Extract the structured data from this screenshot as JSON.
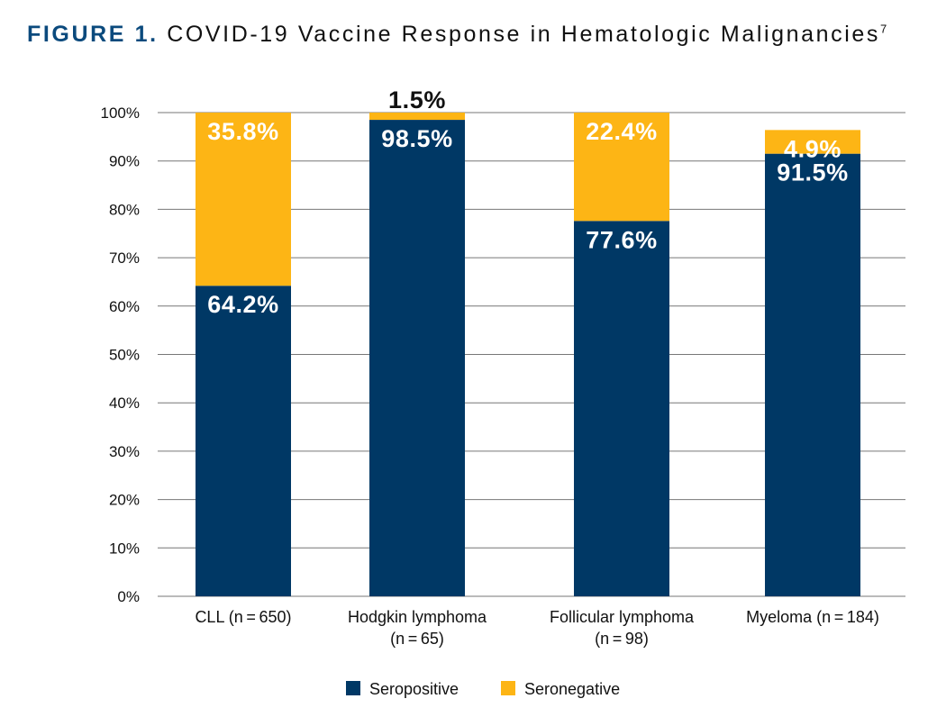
{
  "title": {
    "prefix": "FIGURE 1.",
    "text": "COVID-19 Vaccine Response in Hematologic Malignancies",
    "superscript": "7"
  },
  "chart_data": {
    "type": "bar",
    "stacked": true,
    "categories": [
      [
        "CLL (n = 650)"
      ],
      [
        "Hodgkin lymphoma",
        "(n = 65)"
      ],
      [
        "Follicular lymphoma",
        "(n = 98)"
      ],
      [
        "Myeloma (n = 184)"
      ]
    ],
    "series": [
      {
        "name": "Seropositive",
        "color": "#003865",
        "values": [
          64.2,
          98.5,
          77.6,
          91.5
        ],
        "labels": [
          "64.2%",
          "98.5%",
          "77.6%",
          "91.5%"
        ]
      },
      {
        "name": "Seronegative",
        "color": "#fdb515",
        "values": [
          35.8,
          1.5,
          22.4,
          4.9
        ],
        "labels": [
          "35.8%",
          "1.5%",
          "22.4%",
          "4.9%"
        ]
      }
    ],
    "ylim": [
      0,
      100
    ],
    "yticks": [
      "0%",
      "10%",
      "20%",
      "30%",
      "40%",
      "50%",
      "60%",
      "70%",
      "80%",
      "90%",
      "100%"
    ],
    "grid": true,
    "legend_position": "bottom"
  }
}
